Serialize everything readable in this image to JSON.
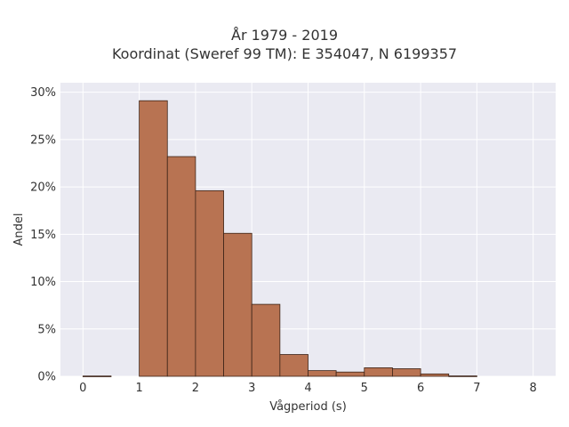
{
  "chart_data": {
    "type": "bar",
    "title": "År 1979 - 2019",
    "subtitle": "Koordinat (Sweref 99 TM): E 354047, N 6199357",
    "xlabel": "Vågperiod (s)",
    "ylabel": "Andel",
    "bin_width": 0.5,
    "bins": [
      {
        "start": 0.0,
        "value": 0.03
      },
      {
        "start": 0.5,
        "value": 0.0
      },
      {
        "start": 1.0,
        "value": 29.1
      },
      {
        "start": 1.5,
        "value": 23.2
      },
      {
        "start": 2.0,
        "value": 19.6
      },
      {
        "start": 2.5,
        "value": 15.1
      },
      {
        "start": 3.0,
        "value": 7.6
      },
      {
        "start": 3.5,
        "value": 2.3
      },
      {
        "start": 4.0,
        "value": 0.6
      },
      {
        "start": 4.5,
        "value": 0.45
      },
      {
        "start": 5.0,
        "value": 0.9
      },
      {
        "start": 5.5,
        "value": 0.8
      },
      {
        "start": 6.0,
        "value": 0.25
      },
      {
        "start": 6.5,
        "value": 0.04
      }
    ],
    "xlim": [
      -0.4,
      8.4
    ],
    "ylim": [
      0,
      31
    ],
    "xticks": [
      0,
      1,
      2,
      3,
      4,
      5,
      6,
      7,
      8
    ],
    "yticks": [
      0,
      5,
      10,
      15,
      20,
      25,
      30
    ],
    "ytick_suffix": "%",
    "grid": true,
    "bar_color": "#b87352",
    "bar_edge_color": "#3d2418",
    "plot_bg": "#eaeaf2",
    "grid_color": "#ffffff"
  }
}
